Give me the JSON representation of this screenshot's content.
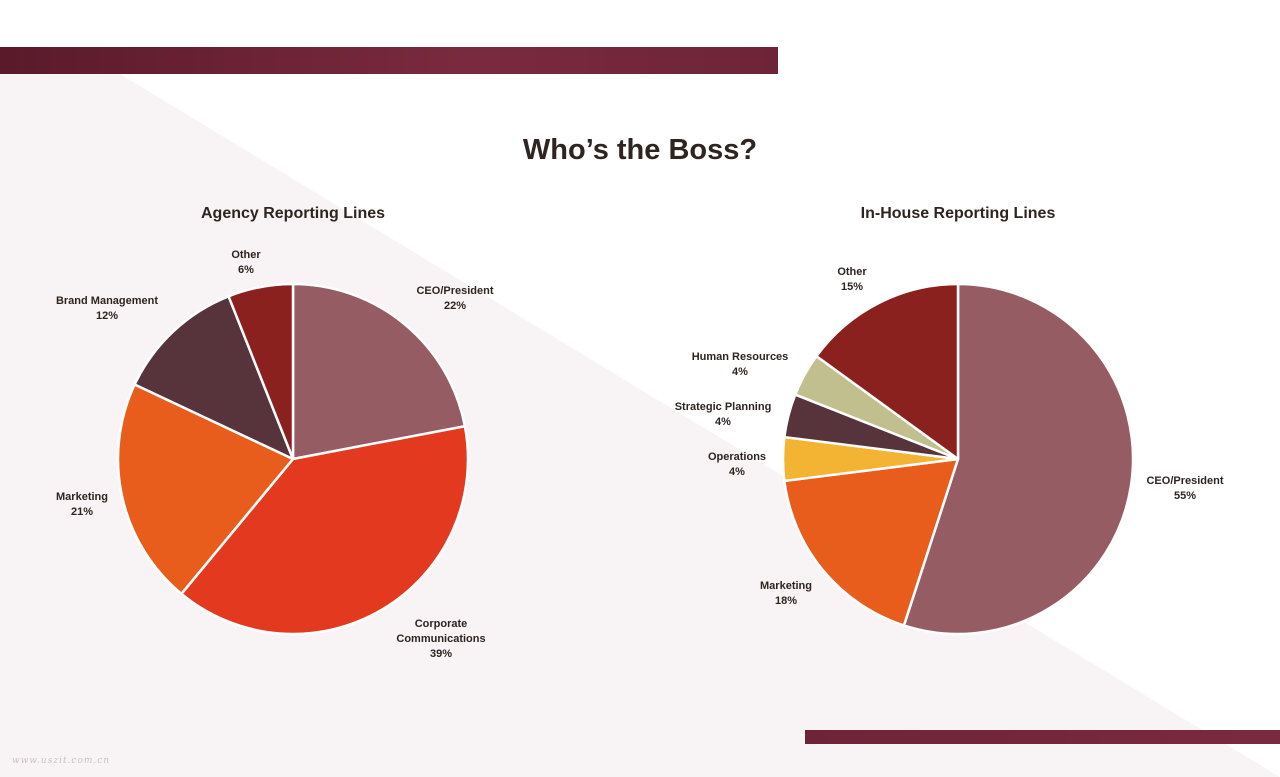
{
  "title": "Who’s the Boss?",
  "watermark": "www.uszit.com.cn",
  "colors": {
    "mauve": "#965c64",
    "red": "#e3391f",
    "orange": "#e95d1c",
    "dark_brown": "#57333b",
    "dark_red": "#8a211f",
    "khaki": "#c1bf8d",
    "yellow": "#f3b433",
    "accent_bar": "#6e2438"
  },
  "chart_data": [
    {
      "type": "pie",
      "title": "Agency Reporting Lines",
      "slices": [
        {
          "label": "CEO/President",
          "value_label": "22%",
          "value": 22,
          "color": "#965c64"
        },
        {
          "label": "Corporate Communications",
          "value_label": "39%",
          "value": 39,
          "color": "#e3391f"
        },
        {
          "label": "Marketing",
          "value_label": "21%",
          "value": 21,
          "color": "#e95d1c"
        },
        {
          "label": "Brand Management",
          "value_label": "12%",
          "value": 12,
          "color": "#57333b"
        },
        {
          "label": "Other",
          "value_label": "6%",
          "value": 6,
          "color": "#8a211f"
        }
      ]
    },
    {
      "type": "pie",
      "title": "In-House Reporting Lines",
      "slices": [
        {
          "label": "CEO/President",
          "value_label": "55%",
          "value": 55,
          "color": "#965c64"
        },
        {
          "label": "Marketing",
          "value_label": "18%",
          "value": 18,
          "color": "#e95d1c"
        },
        {
          "label": "Operations",
          "value_label": "4%",
          "value": 4,
          "color": "#f3b433"
        },
        {
          "label": "Strategic Planning",
          "value_label": "4%",
          "value": 4,
          "color": "#57333b"
        },
        {
          "label": "Human Resources",
          "value_label": "4%",
          "value": 4,
          "color": "#c1bf8d"
        },
        {
          "label": "Other",
          "value_label": "15%",
          "value": 15,
          "color": "#8a211f"
        }
      ]
    }
  ]
}
